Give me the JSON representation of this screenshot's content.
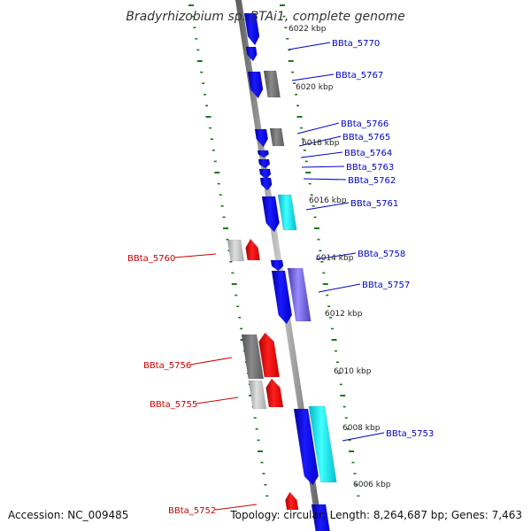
{
  "title": "Bradyrhizobium sp. BTAi1, complete genome",
  "accession": "Accession: NC_009485",
  "topology": "Topology: circular; Length: 8,264,687 bp; Genes: 7,463",
  "colors": {
    "forward_label": "#0000cc",
    "reverse_label": "#cc0000",
    "ticks": "#1a7a1a",
    "backbone": "#808080"
  },
  "tick_labels": [
    "6022 kbp",
    "6020 kbp",
    "6018 kbp",
    "6016 kbp",
    "6014 kbp",
    "6012 kbp",
    "6010 kbp",
    "6008 kbp",
    "6006 kbp"
  ],
  "genes_forward": [
    "BBta_5770",
    "BBta_5767",
    "BBta_5766",
    "BBta_5765",
    "BBta_5764",
    "BBta_5763",
    "BBta_5762",
    "BBta_5761",
    "BBta_5758",
    "BBta_5757",
    "BBta_5753"
  ],
  "genes_reverse": [
    "BBta_5760",
    "BBta_5756",
    "BBta_5755",
    "BBta_5752"
  ]
}
